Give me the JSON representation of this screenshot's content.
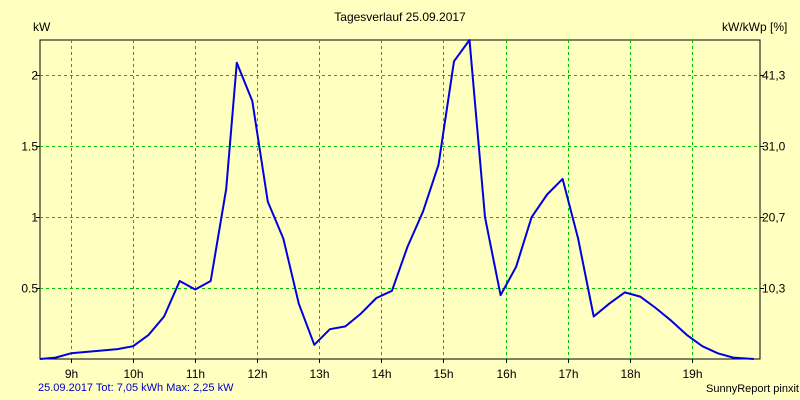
{
  "chart_data": {
    "type": "line",
    "title": "Tagesverlauf 25.09.2017",
    "ylabel_left": "kW",
    "ylabel_right": "kW/kWp [%]",
    "x_tick_labels": [
      "9h",
      "10h",
      "11h",
      "12h",
      "13h",
      "14h",
      "15h",
      "16h",
      "17h",
      "18h",
      "19h"
    ],
    "x_ticks_hours": [
      9,
      10,
      11,
      12,
      13,
      14,
      15,
      16,
      17,
      18,
      19
    ],
    "xlim_hours": [
      8.5,
      20.1
    ],
    "ylim": [
      0,
      2.25
    ],
    "y_ticks_left": [
      0.5,
      1,
      1.5,
      2
    ],
    "y_tick_labels_left": [
      "0.5",
      "1",
      "1.5",
      "2"
    ],
    "y_tick_labels_right": [
      "10,3",
      "20,7",
      "31,0",
      "41,3"
    ],
    "grid": true,
    "line_color": "#0000e0",
    "grid_color": "#00c000",
    "series": [
      {
        "x_hours": [
          8.5,
          8.75,
          9.0,
          9.25,
          9.5,
          9.75,
          10.0,
          10.25,
          10.5,
          10.75,
          11.0,
          11.25,
          11.5,
          11.67,
          11.92,
          12.17,
          12.42,
          12.67,
          12.92,
          13.17,
          13.42,
          13.67,
          13.92,
          14.17,
          14.42,
          14.67,
          14.92,
          15.17,
          15.42,
          15.67,
          15.92,
          16.17,
          16.42,
          16.67,
          16.92,
          17.17,
          17.42,
          17.67,
          17.92,
          18.17,
          18.42,
          18.67,
          18.92,
          19.17,
          19.42,
          19.67,
          20.0
        ],
        "values": [
          0.0,
          0.01,
          0.04,
          0.05,
          0.06,
          0.07,
          0.09,
          0.17,
          0.3,
          0.55,
          0.49,
          0.55,
          1.2,
          2.09,
          1.82,
          1.11,
          0.85,
          0.39,
          0.1,
          0.21,
          0.23,
          0.32,
          0.43,
          0.48,
          0.79,
          1.04,
          1.37,
          2.1,
          2.25,
          1.0,
          0.45,
          0.65,
          1.0,
          1.16,
          1.27,
          0.85,
          0.3,
          0.39,
          0.47,
          0.44,
          0.36,
          0.27,
          0.17,
          0.09,
          0.04,
          0.01,
          0.0
        ]
      }
    ]
  },
  "footer": {
    "summary": "25.09.2017 Tot: 7,05 kWh Max: 2,25 kW",
    "credit": "SunnyReport pinxit"
  }
}
